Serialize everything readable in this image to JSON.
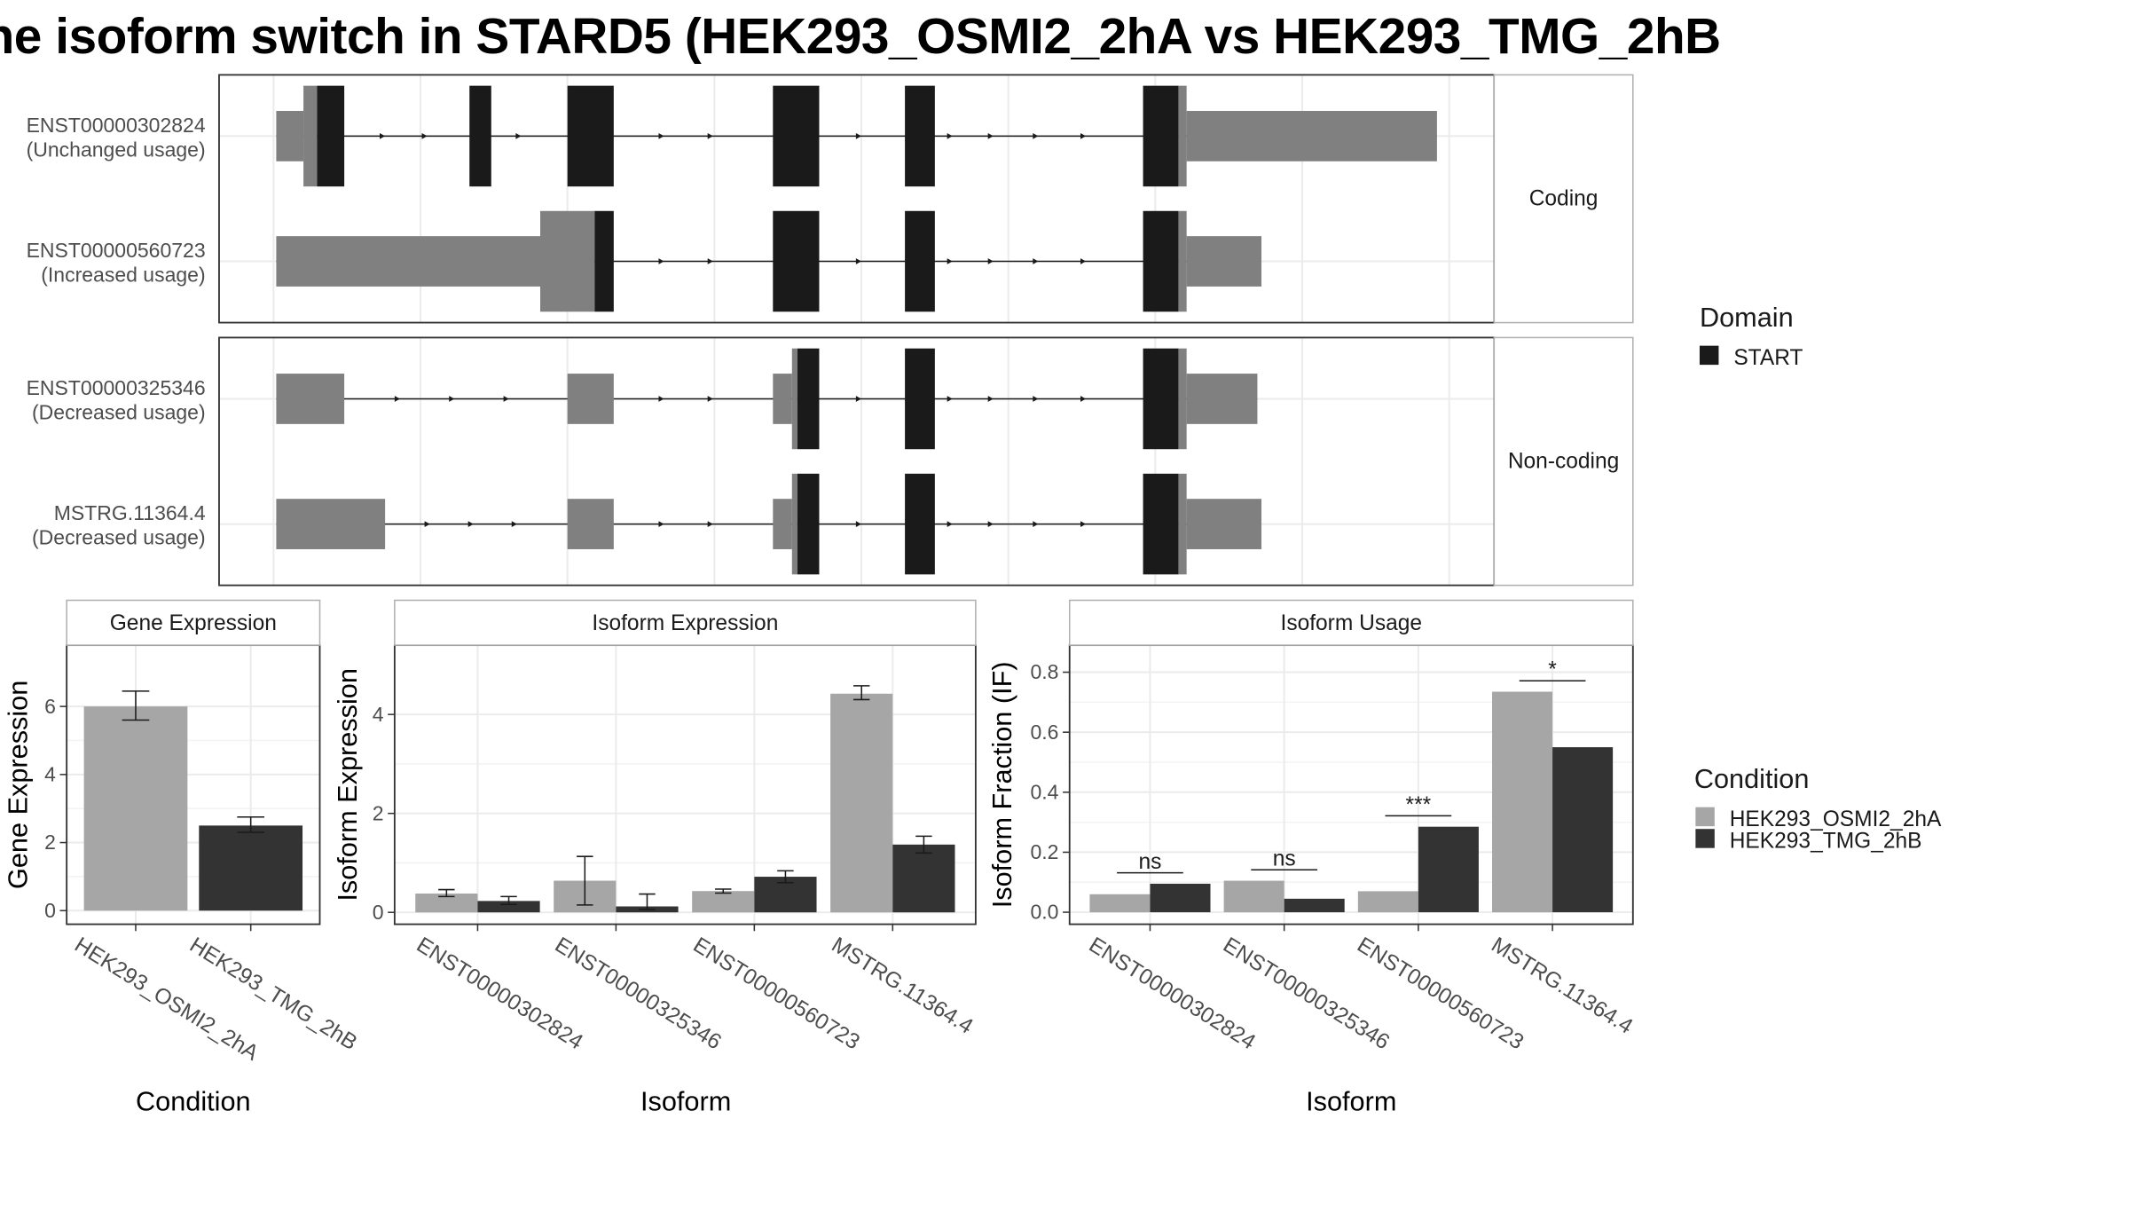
{
  "title": "ne isoform switch in STARD5 (HEK293_OSMI2_2hA vs HEK293_TMG_2hB",
  "colors": {
    "exon_utr": "#808080",
    "domain_start": "#1a1a1a",
    "cond_a": "#a6a6a6",
    "cond_b": "#333333",
    "grid": "#ebebeb",
    "panel_border": "#333333",
    "strip_border": "#b0b0b0"
  },
  "transcript_panels": [
    {
      "label": "Coding",
      "transcripts": [
        {
          "id": "ENST00000302824",
          "usage": "(Unchanged usage)"
        },
        {
          "id": "ENST00000560723",
          "usage": "(Increased usage)"
        }
      ]
    },
    {
      "label": "Non-coding",
      "transcripts": [
        {
          "id": "ENST00000325346",
          "usage": "(Decreased usage)"
        },
        {
          "id": "MSTRG.11364.4",
          "usage": "(Decreased usage)"
        }
      ]
    }
  ],
  "domain_legend": {
    "title": "Domain",
    "items": [
      "START"
    ]
  },
  "condition_legend": {
    "title": "Condition",
    "items": [
      "HEK293_OSMI2_2hA",
      "HEK293_TMG_2hB"
    ]
  },
  "chart_data": [
    {
      "type": "bar",
      "title": "Gene Expression",
      "xlabel": "Condition",
      "ylabel": "Gene Expression",
      "categories": [
        "HEK293_OSMI2_2hA",
        "HEK293_TMG_2hB"
      ],
      "values": [
        6.0,
        2.5
      ],
      "error_low": [
        5.6,
        2.3
      ],
      "error_high": [
        6.45,
        2.75
      ],
      "ylim": [
        -0.4,
        7.8
      ],
      "yticks": [
        0,
        2,
        4,
        6
      ]
    },
    {
      "type": "bar",
      "title": "Isoform Expression",
      "xlabel": "Isoform",
      "ylabel": "Isoform Expression",
      "categories": [
        "ENST00000302824",
        "ENST00000325346",
        "ENST00000560723",
        "MSTRG.11364.4"
      ],
      "series": [
        {
          "name": "HEK293_OSMI2_2hA",
          "values": [
            0.38,
            0.64,
            0.43,
            4.42
          ],
          "error_low": [
            0.32,
            0.15,
            0.39,
            4.3
          ],
          "error_high": [
            0.46,
            1.13,
            0.47,
            4.58
          ]
        },
        {
          "name": "HEK293_TMG_2hB",
          "values": [
            0.23,
            0.12,
            0.72,
            1.37
          ],
          "error_low": [
            0.16,
            0.06,
            0.6,
            1.2
          ],
          "error_high": [
            0.32,
            0.37,
            0.84,
            1.54
          ]
        }
      ],
      "ylim": [
        -0.24,
        5.4
      ],
      "yticks": [
        0,
        2,
        4
      ]
    },
    {
      "type": "bar",
      "title": "Isoform Usage",
      "xlabel": "Isoform",
      "ylabel": "Isoform Fraction (IF)",
      "categories": [
        "ENST00000302824",
        "ENST00000325346",
        "ENST00000560723",
        "MSTRG.11364.4"
      ],
      "series": [
        {
          "name": "HEK293_OSMI2_2hA",
          "values": [
            0.06,
            0.105,
            0.07,
            0.735
          ]
        },
        {
          "name": "HEK293_TMG_2hB",
          "values": [
            0.095,
            0.045,
            0.285,
            0.55
          ]
        }
      ],
      "significance": [
        "ns",
        "ns",
        "***",
        "*"
      ],
      "ylim": [
        -0.04,
        0.89
      ],
      "yticks": [
        0.0,
        0.2,
        0.4,
        0.6,
        0.8
      ]
    }
  ]
}
